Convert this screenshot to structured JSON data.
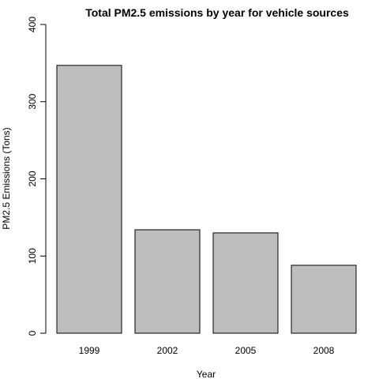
{
  "chart_data": {
    "type": "bar",
    "title": "Total PM2.5 emissions by year for vehicle sources",
    "xlabel": "Year",
    "ylabel": "PM2.5 Emissions (Tons)",
    "categories": [
      "1999",
      "2002",
      "2005",
      "2008"
    ],
    "values": [
      347,
      134,
      130,
      88
    ],
    "ylim": [
      0,
      400
    ],
    "yticks": [
      0,
      100,
      200,
      300,
      400
    ],
    "grid": false,
    "bar_color": "#bebebe",
    "bar_border_color": "#000000"
  }
}
